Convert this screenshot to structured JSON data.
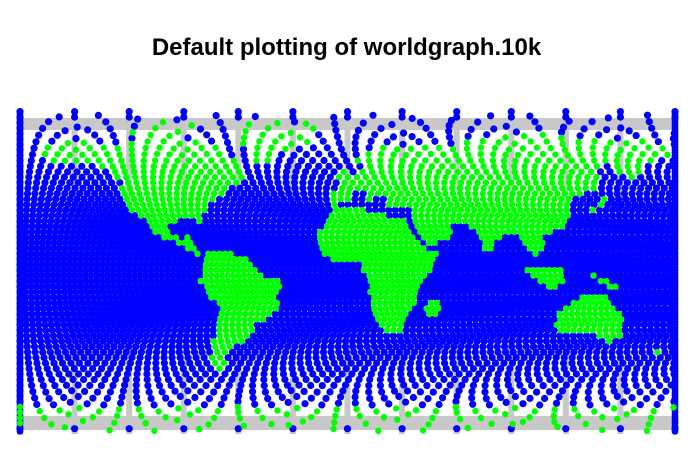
{
  "title": "Default plotting of worldgraph.10k",
  "legend_colors": {
    "ocean_points": "#0000ff",
    "land_points": "#00ff00",
    "background_graph": "#c8c8c8"
  },
  "map_data": {
    "projection": "equirectangular",
    "lon_range": [
      -180,
      180
    ],
    "lat_range": [
      -90,
      90
    ]
  }
}
